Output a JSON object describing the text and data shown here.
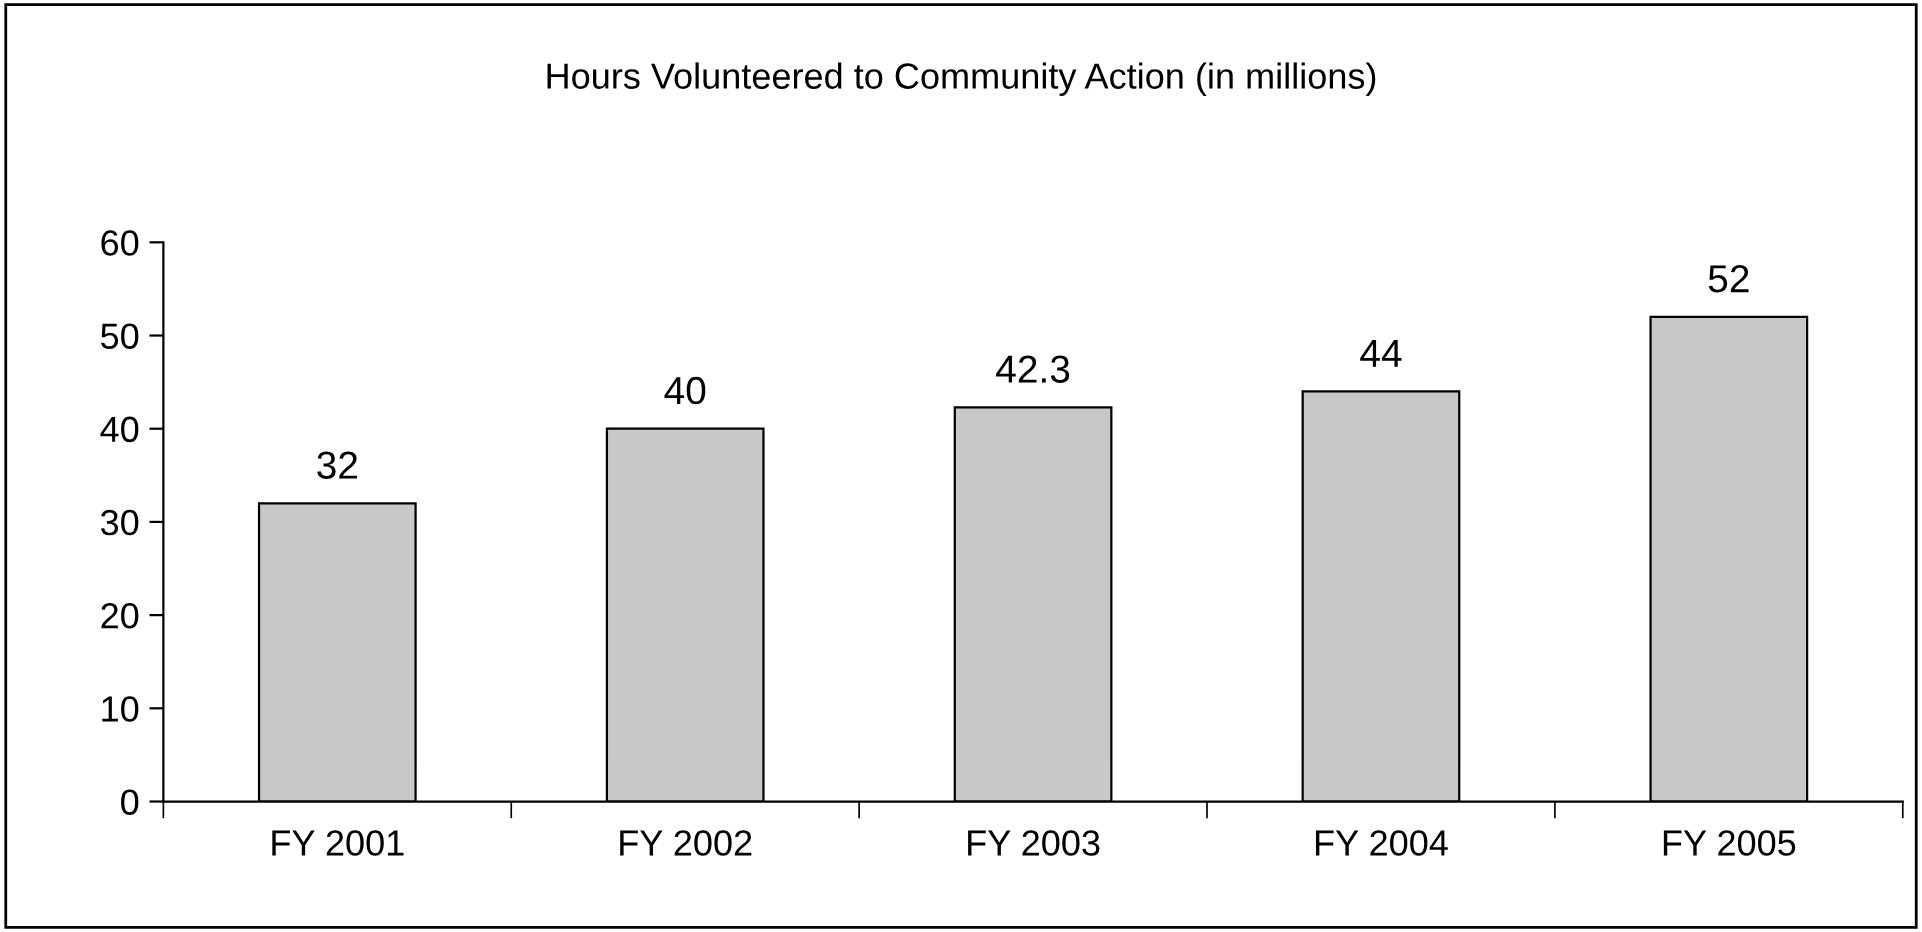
{
  "chart_data": {
    "type": "bar",
    "title": "Hours Volunteered to Community Action (in millions)",
    "categories": [
      "FY 2001",
      "FY 2002",
      "FY 2003",
      "FY 2004",
      "FY 2005"
    ],
    "values": [
      32,
      40,
      42.3,
      44,
      52
    ],
    "color": "#c8c8c8",
    "ylim": [
      0,
      60
    ],
    "yticks": [
      0,
      10,
      20,
      30,
      40,
      50,
      60
    ],
    "grid": false,
    "data_labels": true
  }
}
